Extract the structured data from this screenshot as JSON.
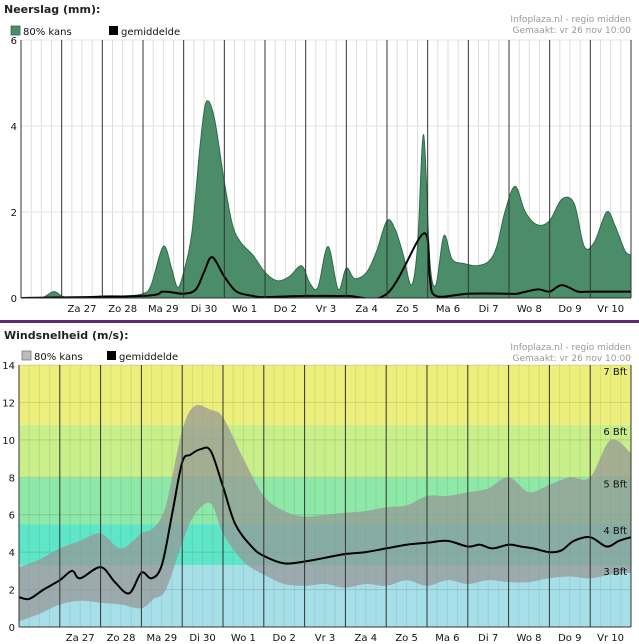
{
  "site": "Infoplaza.nl - regio midden",
  "made": "Gemaakt: vr 26 nov 10:00",
  "precip": {
    "title": "Neerslag (mm):",
    "legend_range": "80% kans",
    "legend_mean": "gemiddelde",
    "colors": {
      "range": "#4b8d68",
      "range_edge": "#2f6b49",
      "mean": "#000000"
    }
  },
  "wind": {
    "title": "Windsnelheid (m/s):",
    "legend_range": "80% kans",
    "legend_mean": "gemiddelde",
    "colors": {
      "range": "#9a9a9a",
      "mean": "#000000"
    }
  },
  "chart_data": [
    {
      "type": "area",
      "title": "Neerslag (mm):",
      "ylim": [
        0,
        6
      ],
      "yticks": [
        0,
        2,
        4,
        6
      ],
      "xlim": [
        0,
        15
      ],
      "xtick_labels": [
        "Za 27",
        "Zo 28",
        "Ma 29",
        "Di 30",
        "Wo 1",
        "Do 2",
        "Vr 3",
        "Za 4",
        "Zo 5",
        "Ma 6",
        "Di 7",
        "Wo 8",
        "Do 9",
        "Vr 10"
      ],
      "legend": [
        "80% kans",
        "gemiddelde"
      ],
      "series": [
        {
          "name": "80% kans",
          "x": [
            0,
            0.5,
            0.8,
            1.0,
            1.2,
            2.0,
            2.6,
            3.0,
            3.2,
            3.5,
            3.7,
            3.85,
            4.0,
            4.2,
            4.4,
            4.55,
            4.75,
            5.0,
            5.2,
            5.4,
            5.7,
            6.0,
            6.3,
            6.6,
            6.9,
            7.1,
            7.3,
            7.55,
            7.8,
            8.0,
            8.2,
            8.5,
            8.75,
            9.0,
            9.2,
            9.4,
            9.6,
            9.75,
            9.9,
            10.05,
            10.2,
            10.4,
            10.6,
            10.9,
            11.2,
            11.5,
            11.7,
            11.9,
            12.15,
            12.4,
            12.7,
            13.0,
            13.3,
            13.6,
            13.85,
            14.1,
            14.4,
            14.6,
            14.85,
            15.0
          ],
          "values": [
            0,
            0,
            0.15,
            0.05,
            0,
            0.05,
            0.05,
            0.1,
            0.3,
            1.2,
            0.7,
            0.25,
            0.6,
            1.5,
            3.5,
            4.55,
            4.2,
            2.7,
            1.7,
            1.3,
            1.0,
            0.6,
            0.4,
            0.5,
            0.75,
            0.35,
            0.25,
            1.2,
            0.2,
            0.7,
            0.45,
            0.6,
            1.1,
            1.8,
            1.6,
            1.0,
            0.3,
            1.2,
            3.8,
            0.9,
            0.3,
            1.45,
            0.9,
            0.8,
            0.75,
            0.85,
            1.2,
            2.0,
            2.6,
            2.0,
            1.7,
            1.8,
            2.3,
            2.2,
            1.2,
            1.3,
            2.0,
            1.7,
            1.1,
            1.0
          ]
        },
        {
          "name": "gemiddelde",
          "x": [
            0,
            3.0,
            3.5,
            4.0,
            4.3,
            4.5,
            4.7,
            5.0,
            5.3,
            5.7,
            6.0,
            7.0,
            8.0,
            9.0,
            9.9,
            10.05,
            10.2,
            11,
            12,
            12.2,
            12.7,
            13.0,
            13.3,
            13.7,
            14,
            15
          ],
          "values": [
            0,
            0.05,
            0.15,
            0.1,
            0.2,
            0.6,
            0.95,
            0.5,
            0.15,
            0.05,
            0.02,
            0.05,
            0.05,
            0.1,
            1.5,
            0.5,
            0.05,
            0.1,
            0.1,
            0.1,
            0.2,
            0.15,
            0.3,
            0.15,
            0.15,
            0.15
          ]
        }
      ]
    },
    {
      "type": "area",
      "title": "Windsnelheid (m/s):",
      "ylim": [
        0,
        14
      ],
      "yticks": [
        0,
        2,
        4,
        6,
        8,
        10,
        12,
        14
      ],
      "xlim": [
        0,
        15
      ],
      "xtick_labels": [
        "Za 27",
        "Zo 28",
        "Ma 29",
        "Di 30",
        "Wo 1",
        "Do 2",
        "Vr 3",
        "Za 4",
        "Zo 5",
        "Ma 6",
        "Di 7",
        "Wo 8",
        "Do 9",
        "Vr 10"
      ],
      "legend": [
        "80% kans",
        "gemiddelde"
      ],
      "beaufort": [
        {
          "label": "3 Bft",
          "from": 0,
          "to": 3.3,
          "color": "#a7dfe8"
        },
        {
          "label": "4 Bft",
          "from": 3.3,
          "to": 5.5,
          "color": "#5fe6c8"
        },
        {
          "label": "5 Bft",
          "from": 5.5,
          "to": 8.0,
          "color": "#8ee8a8"
        },
        {
          "label": "6 Bft",
          "from": 8.0,
          "to": 10.8,
          "color": "#c9ef8a"
        },
        {
          "label": "7 Bft",
          "from": 10.8,
          "to": 14,
          "color": "#ecef7c"
        }
      ],
      "series": [
        {
          "name": "80% kans",
          "x": [
            0,
            0.5,
            1.0,
            1.5,
            2.0,
            2.5,
            3.0,
            3.3,
            3.6,
            4.0,
            4.3,
            4.7,
            5.0,
            5.5,
            6.0,
            6.5,
            7.0,
            7.5,
            8.0,
            8.5,
            9.0,
            9.5,
            10.0,
            10.5,
            11.0,
            11.5,
            12.0,
            12.5,
            13.0,
            13.5,
            14.0,
            14.5,
            15.0
          ],
          "upper": [
            3.2,
            3.6,
            4.2,
            4.6,
            5.0,
            4.2,
            5.0,
            5.3,
            6.5,
            10.5,
            11.8,
            11.6,
            11.2,
            9.0,
            7.0,
            6.2,
            5.9,
            6.0,
            6.1,
            6.2,
            6.4,
            6.5,
            7.0,
            7.0,
            7.2,
            7.4,
            8.0,
            7.2,
            7.6,
            8.0,
            8.0,
            10.0,
            9.3
          ],
          "lower": [
            0.3,
            0.7,
            1.2,
            1.4,
            1.3,
            1.2,
            1.0,
            1.5,
            2.0,
            4.5,
            6.0,
            6.6,
            5.0,
            3.5,
            2.8,
            2.3,
            2.2,
            2.3,
            2.1,
            2.3,
            2.2,
            2.5,
            2.2,
            2.5,
            2.3,
            2.5,
            2.4,
            2.4,
            2.6,
            2.7,
            2.6,
            2.8,
            2.9
          ]
        },
        {
          "name": "gemiddelde",
          "x": [
            0,
            0.25,
            0.6,
            1.0,
            1.3,
            1.5,
            2.0,
            2.35,
            2.7,
            3.0,
            3.25,
            3.5,
            3.75,
            4.0,
            4.2,
            4.45,
            4.7,
            5.0,
            5.3,
            5.7,
            6.0,
            6.5,
            7.0,
            7.5,
            8.0,
            8.5,
            9.0,
            9.5,
            10.0,
            10.5,
            11.0,
            11.3,
            11.6,
            12.0,
            12.3,
            12.6,
            13.0,
            13.3,
            13.6,
            14.0,
            14.4,
            14.7,
            15.0
          ],
          "values": [
            1.6,
            1.5,
            2.0,
            2.5,
            3.0,
            2.6,
            3.2,
            2.4,
            1.8,
            2.9,
            2.6,
            3.3,
            6.0,
            8.8,
            9.2,
            9.5,
            9.4,
            7.5,
            5.5,
            4.3,
            3.8,
            3.4,
            3.5,
            3.7,
            3.9,
            4.0,
            4.2,
            4.4,
            4.5,
            4.6,
            4.3,
            4.4,
            4.2,
            4.4,
            4.3,
            4.2,
            4.0,
            4.1,
            4.6,
            4.8,
            4.3,
            4.6,
            4.8
          ]
        }
      ]
    }
  ]
}
